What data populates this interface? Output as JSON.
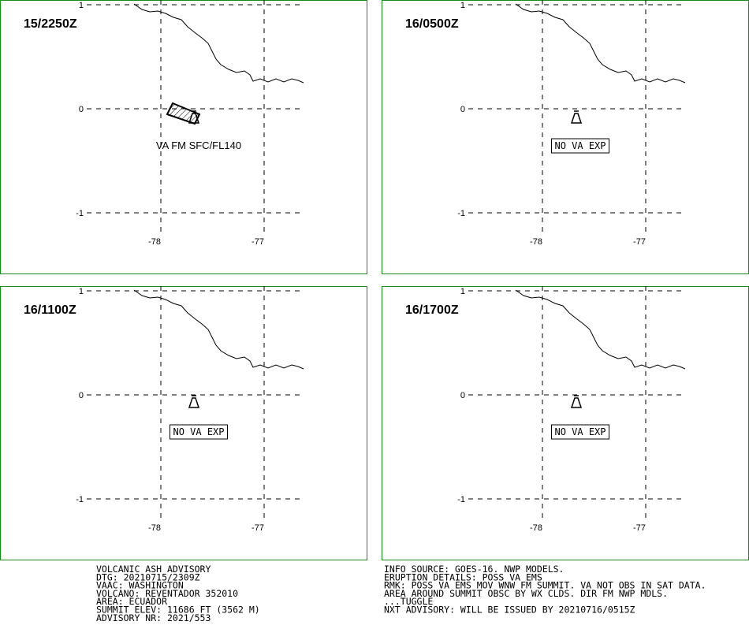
{
  "lat_ticks": [
    1,
    0,
    -1
  ],
  "lon_ticks": [
    -78,
    -77
  ],
  "panels": [
    {
      "time": "15/2250Z",
      "annotation": "VA FM SFC/FL140",
      "boxed": false
    },
    {
      "time": "16/0500Z",
      "annotation": "NO VA EXP",
      "boxed": true
    },
    {
      "time": "16/1100Z",
      "annotation": "NO VA EXP",
      "boxed": true
    },
    {
      "time": "16/1700Z",
      "annotation": "NO VA EXP",
      "boxed": true
    }
  ],
  "advisory_left": [
    "VOLCANIC ASH ADVISORY",
    "DTG: 20210715/2309Z",
    "VAAC: WASHINGTON",
    "VOLCANO: REVENTADOR 352010",
    "AREA: ECUADOR",
    "SUMMIT ELEV: 11686 FT (3562 M)",
    "ADVISORY NR: 2021/553"
  ],
  "advisory_right": [
    "INFO SOURCE: GOES-16. NWP MODELS.",
    "ERUPTION DETAILS: POSS VA EMS",
    "RMK: POSS VA EMS MOV WNW FM SUMMIT. VA NOT OBS IN SAT DATA.",
    "AREA AROUND SUMMIT OBSC BY WX CLDS. DIR FM NWP MDLS.",
    "...TUGGLE",
    "NXT ADVISORY: WILL BE ISSUED BY 20210716/0515Z"
  ]
}
